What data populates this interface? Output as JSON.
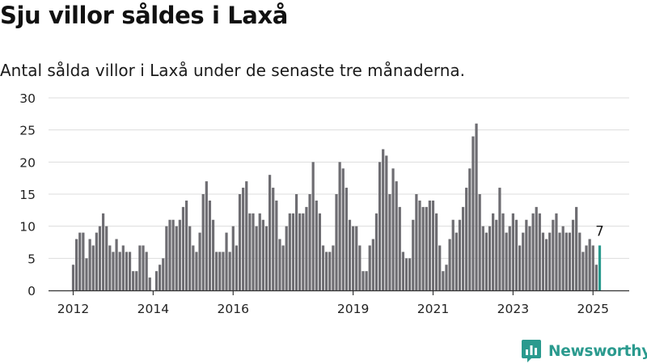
{
  "title": "Sju villor såldes i Laxå",
  "subtitle": "Antal sålda villor i Laxå under de senaste tre månaderna.",
  "brand": {
    "name": "Newsworthy",
    "icon": "newsworthy-logo-icon",
    "color": "#2a9a8e"
  },
  "colors": {
    "bar": "#6e6d72",
    "highlight": "#2a9a8e",
    "grid": "#dddddd",
    "axis": "#333333"
  },
  "chart_data": {
    "type": "bar",
    "x_start": "2012-01",
    "x_step": "month",
    "x_tick_labels": [
      "2012",
      "2014",
      "2016",
      "2019",
      "2021",
      "2023",
      "2025"
    ],
    "x_tick_months": [
      "2012-01",
      "2014-01",
      "2016-01",
      "2019-01",
      "2021-01",
      "2023-01",
      "2025-01"
    ],
    "ylim": [
      0,
      30
    ],
    "y_ticks": [
      0,
      5,
      10,
      15,
      20,
      25,
      30
    ],
    "grid": true,
    "highlight_last": true,
    "last_value_label": "7",
    "values": [
      4,
      8,
      9,
      9,
      5,
      8,
      7,
      9,
      10,
      12,
      10,
      7,
      6,
      8,
      6,
      7,
      6,
      6,
      3,
      3,
      7,
      7,
      6,
      2,
      0,
      3,
      4,
      5,
      10,
      11,
      11,
      10,
      11,
      13,
      14,
      10,
      7,
      6,
      9,
      15,
      17,
      14,
      11,
      6,
      6,
      6,
      9,
      6,
      10,
      7,
      15,
      16,
      17,
      12,
      12,
      10,
      12,
      11,
      10,
      18,
      16,
      14,
      8,
      7,
      10,
      12,
      12,
      15,
      12,
      12,
      13,
      15,
      20,
      14,
      12,
      7,
      6,
      6,
      7,
      15,
      20,
      19,
      16,
      11,
      10,
      10,
      7,
      3,
      3,
      7,
      8,
      12,
      20,
      22,
      21,
      15,
      19,
      17,
      13,
      6,
      5,
      5,
      11,
      15,
      14,
      13,
      13,
      14,
      14,
      12,
      7,
      3,
      4,
      8,
      11,
      9,
      11,
      13,
      16,
      19,
      24,
      26,
      15,
      10,
      9,
      10,
      12,
      11,
      16,
      12,
      9,
      10,
      12,
      11,
      7,
      9,
      11,
      10,
      12,
      13,
      12,
      9,
      8,
      9,
      11,
      12,
      9,
      10,
      9,
      9,
      11,
      13,
      9,
      6,
      7,
      8,
      7,
      4,
      7
    ]
  }
}
